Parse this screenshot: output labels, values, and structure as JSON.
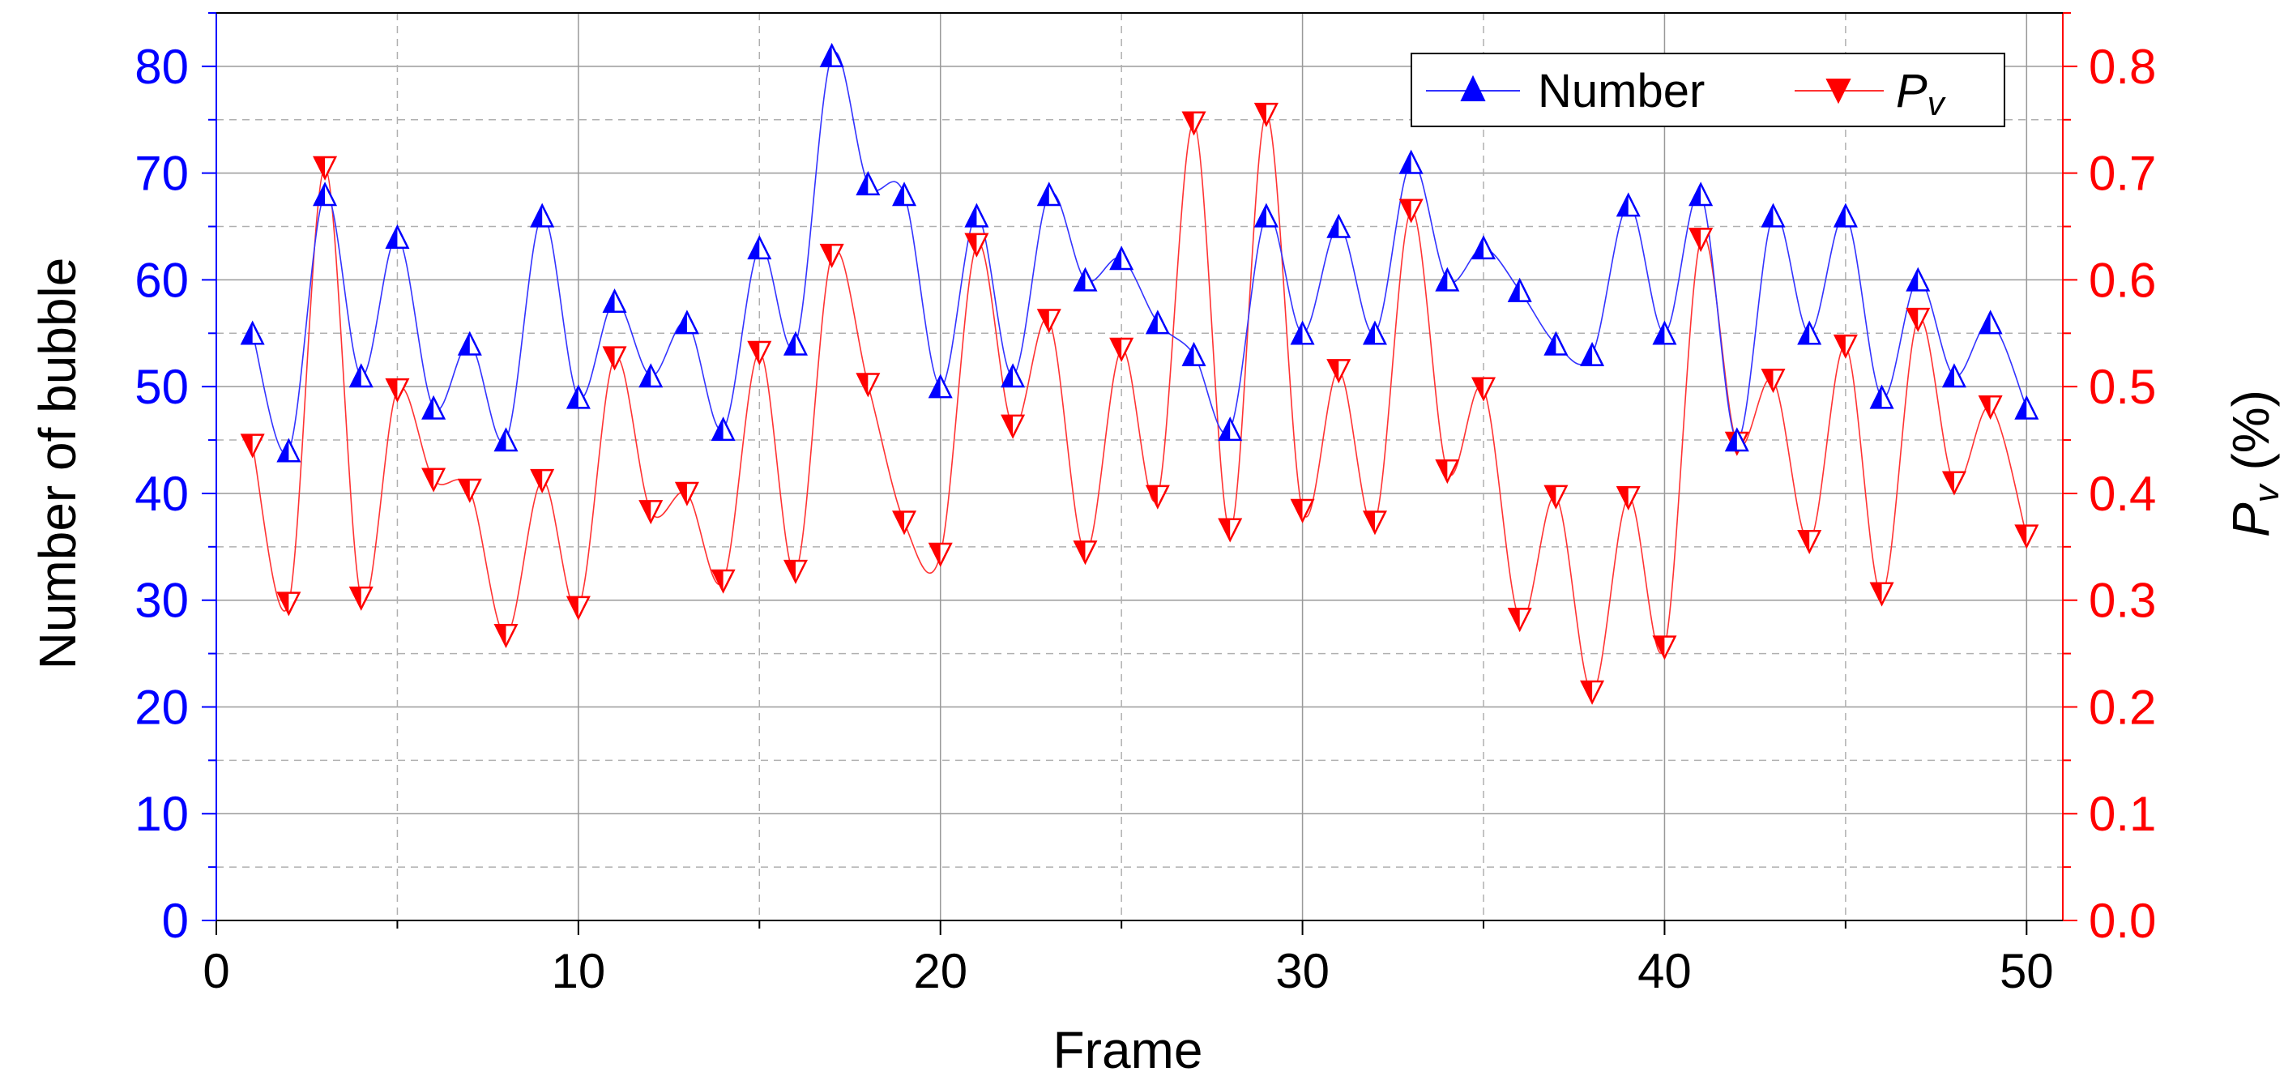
{
  "colors": {
    "left_axis": "#0000ff",
    "right_axis": "#ff0000",
    "number_line": "#3333ff",
    "pv_line": "#ff3333",
    "grid_major": "#999999",
    "grid_minor": "#b0b0b0"
  },
  "chart_data": {
    "type": "line",
    "xlabel": "Frame",
    "ylabel_left": "Number of bubble",
    "ylabel_right_main": "P",
    "ylabel_right_sub": "v",
    "ylabel_right_unit": " (%)",
    "xlim": [
      0,
      51
    ],
    "ylim_left": [
      0,
      85
    ],
    "ylim_right": [
      0,
      0.85
    ],
    "x_ticks": [
      0,
      10,
      20,
      30,
      40,
      50
    ],
    "y_left_ticks": [
      0,
      10,
      20,
      30,
      40,
      50,
      60,
      70,
      80
    ],
    "y_right_ticks": [
      "0.0",
      "0.1",
      "0.2",
      "0.3",
      "0.4",
      "0.5",
      "0.6",
      "0.7",
      "0.8"
    ],
    "grid": true,
    "legend_position": "top-right",
    "x": [
      1,
      2,
      3,
      4,
      5,
      6,
      7,
      8,
      9,
      10,
      11,
      12,
      13,
      14,
      15,
      16,
      17,
      18,
      19,
      20,
      21,
      22,
      23,
      24,
      25,
      26,
      27,
      28,
      29,
      30,
      31,
      32,
      33,
      34,
      35,
      36,
      37,
      38,
      39,
      40,
      41,
      42,
      43,
      44,
      45,
      46,
      47,
      48,
      49,
      50
    ],
    "series": [
      {
        "name": "Number",
        "axis": "left",
        "marker": "triangle-up",
        "values": [
          55,
          44,
          68,
          51,
          64,
          48,
          54,
          45,
          66,
          49,
          58,
          51,
          56,
          46,
          63,
          54,
          81,
          69,
          68,
          50,
          66,
          51,
          68,
          60,
          62,
          56,
          53,
          46,
          66,
          55,
          65,
          55,
          71,
          60,
          63,
          59,
          54,
          53,
          67,
          55,
          68,
          45,
          66,
          55,
          66,
          49,
          60,
          51,
          56,
          48
        ]
      },
      {
        "name_main": "P",
        "name_sub": "v",
        "axis": "right",
        "marker": "triangle-down",
        "values": [
          0.445,
          0.297,
          0.705,
          0.302,
          0.497,
          0.413,
          0.403,
          0.267,
          0.412,
          0.293,
          0.527,
          0.383,
          0.4,
          0.318,
          0.532,
          0.327,
          0.623,
          0.502,
          0.373,
          0.343,
          0.633,
          0.463,
          0.562,
          0.345,
          0.535,
          0.397,
          0.747,
          0.366,
          0.755,
          0.384,
          0.515,
          0.373,
          0.665,
          0.421,
          0.498,
          0.282,
          0.397,
          0.214,
          0.396,
          0.256,
          0.638,
          0.447,
          0.506,
          0.355,
          0.538,
          0.306,
          0.563,
          0.41,
          0.481,
          0.36
        ]
      }
    ]
  }
}
